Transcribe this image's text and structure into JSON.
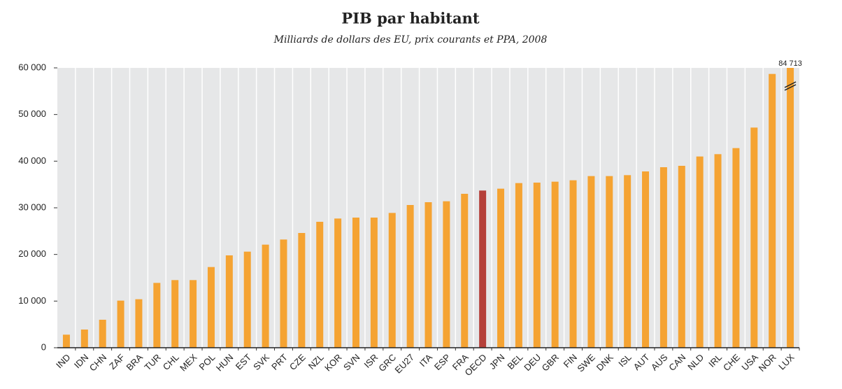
{
  "chart_data": {
    "type": "bar",
    "title": "PIB par habitant",
    "subtitle": "Milliards de dollars des EU, prix courants et PPA, 2008",
    "categories": [
      "IND",
      "IDN",
      "CHN",
      "ZAF",
      "BRA",
      "TUR",
      "CHL",
      "MEX",
      "POL",
      "HUN",
      "EST",
      "SVK",
      "PRT",
      "CZE",
      "NZL",
      "KOR",
      "SVN",
      "ISR",
      "GRC",
      "EU27",
      "ITA",
      "ESP",
      "FRA",
      "OECD",
      "JPN",
      "BEL",
      "DEU",
      "GBR",
      "FIN",
      "SWE",
      "DNK",
      "ISL",
      "AUT",
      "AUS",
      "CAN",
      "NLD",
      "IRL",
      "CHE",
      "USA",
      "NOR",
      "LUX"
    ],
    "values": [
      2800,
      3900,
      6000,
      10100,
      10400,
      13900,
      14500,
      14500,
      17300,
      19800,
      20600,
      22100,
      23200,
      24600,
      27000,
      27700,
      27900,
      27900,
      28900,
      30600,
      31200,
      31400,
      33000,
      33700,
      34100,
      35300,
      35400,
      35600,
      35900,
      36800,
      36800,
      37000,
      37800,
      38700,
      39000,
      41000,
      41500,
      42800,
      47200,
      58700,
      84713
    ],
    "value_labels": [
      null,
      null,
      null,
      null,
      null,
      null,
      null,
      null,
      null,
      null,
      null,
      null,
      null,
      null,
      null,
      null,
      null,
      null,
      null,
      null,
      null,
      null,
      null,
      null,
      null,
      null,
      null,
      null,
      null,
      null,
      null,
      null,
      null,
      null,
      null,
      null,
      null,
      null,
      null,
      null,
      "84 713"
    ],
    "colors": [
      "#f5a332",
      "#f5a332",
      "#f5a332",
      "#f5a332",
      "#f5a332",
      "#f5a332",
      "#f5a332",
      "#f5a332",
      "#f5a332",
      "#f5a332",
      "#f5a332",
      "#f5a332",
      "#f5a332",
      "#f5a332",
      "#f5a332",
      "#f5a332",
      "#f5a332",
      "#f5a332",
      "#f5a332",
      "#f5a332",
      "#f5a332",
      "#f5a332",
      "#f5a332",
      "#b5403a",
      "#f5a332",
      "#f5a332",
      "#f5a332",
      "#f5a332",
      "#f5a332",
      "#f5a332",
      "#f5a332",
      "#f5a332",
      "#f5a332",
      "#f5a332",
      "#f5a332",
      "#f5a332",
      "#f5a332",
      "#f5a332",
      "#f5a332",
      "#f5a332",
      "#f5a332"
    ],
    "ylim": [
      0,
      60000
    ],
    "yticks": [
      0,
      {
        "value": 10000,
        "label": "10 000"
      },
      {
        "value": 20000,
        "label": "20 000"
      },
      {
        "value": 30000,
        "label": "30 000"
      },
      {
        "value": 40000,
        "label": "40 000"
      },
      {
        "value": 50000,
        "label": "50 000"
      },
      {
        "value": 60000,
        "label": "60 000"
      }
    ],
    "grid": false
  }
}
